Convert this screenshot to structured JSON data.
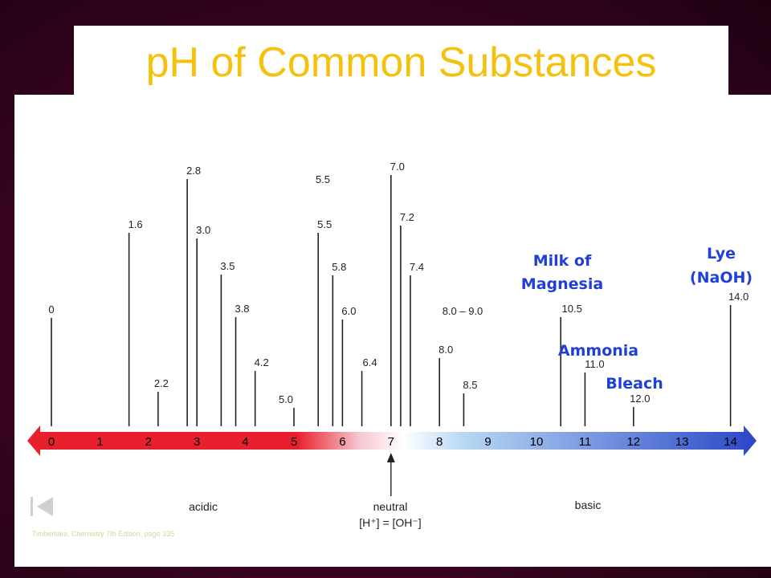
{
  "slide": {
    "title": "pH of Common Substances",
    "credit": "Timberlake, Chemistry 7th Edition, page 335"
  },
  "scale": {
    "ticks": [
      "0",
      "1",
      "2",
      "3",
      "4",
      "5",
      "6",
      "7",
      "8",
      "9",
      "10",
      "11",
      "12",
      "13",
      "14"
    ],
    "acidic_label": "acidic",
    "basic_label": "basic",
    "neutral_label": "neutral",
    "neutral_eq": "[H⁺] = [OH⁻]",
    "colors": {
      "acid": "#e8202e",
      "base": "#2a46c8",
      "neutral": "#ffffff"
    }
  },
  "markers": [
    {
      "value": 0.0,
      "label": "0"
    },
    {
      "value": 1.6,
      "label": "1.6"
    },
    {
      "value": 2.2,
      "label": "2.2"
    },
    {
      "value": 2.8,
      "label": "2.8"
    },
    {
      "value": 3.0,
      "label": "3.0"
    },
    {
      "value": 3.5,
      "label": "3.5"
    },
    {
      "value": 3.8,
      "label": "3.8"
    },
    {
      "value": 4.2,
      "label": "4.2"
    },
    {
      "value": 5.0,
      "label": "5.0"
    },
    {
      "value": 5.5,
      "label": "5.5"
    },
    {
      "value": 5.8,
      "label": "5.8"
    },
    {
      "value": 6.0,
      "label": "6.0"
    },
    {
      "value": 6.4,
      "label": "6.4"
    },
    {
      "value": 7.0,
      "label": "7.0"
    },
    {
      "value": 7.2,
      "label": "7.2"
    },
    {
      "value": 7.4,
      "label": "7.4"
    },
    {
      "value": 8.0,
      "label": "8.0"
    },
    {
      "value": 8.5,
      "label": "8.5"
    },
    {
      "value": 10.5,
      "label": "10.5"
    },
    {
      "value": 11.0,
      "label": "11.0"
    },
    {
      "value": 12.0,
      "label": "12.0"
    },
    {
      "value": 14.0,
      "label": "14.0"
    }
  ],
  "extra_labels": [
    {
      "text": "5.5"
    },
    {
      "text": "8.0 – 9.0"
    }
  ],
  "substances": [
    {
      "name": "Milk of Magnesia",
      "line1": "Milk of",
      "line2": "Magnesia",
      "ph": 10.5
    },
    {
      "name": "Ammonia",
      "line1": "Ammonia",
      "ph": 11.0
    },
    {
      "name": "Bleach",
      "line1": "Bleach",
      "ph": 12.0
    },
    {
      "name": "Lye (NaOH)",
      "line1": "Lye",
      "line2": "(NaOH)",
      "ph": 14.0
    }
  ],
  "icons": {
    "nav": "first-slide-icon"
  }
}
